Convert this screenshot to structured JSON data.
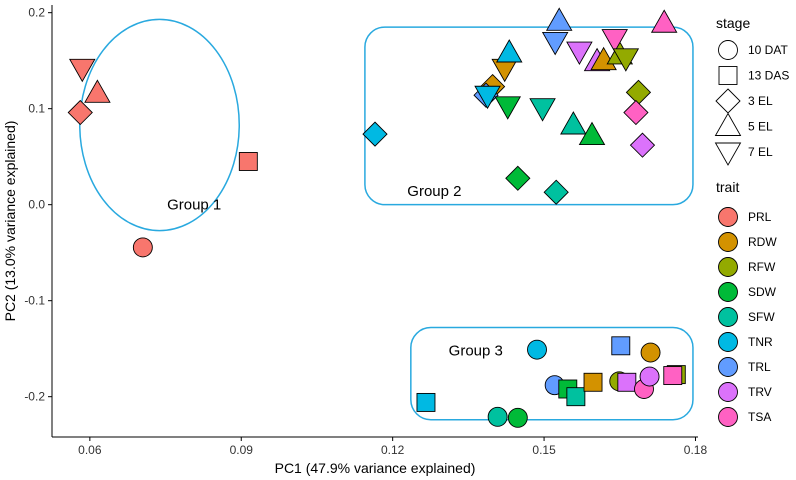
{
  "chart_data": {
    "type": "scatter",
    "xlabel": "PC1 (47.9% variance explained)",
    "ylabel": "PC2 (13.0% variance explained)",
    "xlim": [
      0.0525,
      0.1805
    ],
    "ylim": [
      -0.242,
      0.208
    ],
    "xticks": [
      0.06,
      0.09,
      0.12,
      0.15,
      0.18
    ],
    "xtick_labels": [
      "0.06",
      "0.09",
      "0.12",
      "0.15",
      "0.18"
    ],
    "yticks": [
      -0.2,
      -0.1,
      0.0,
      0.1,
      0.2
    ],
    "ytick_labels": [
      "-0.2",
      "-0.1",
      "0.0",
      "0.1",
      "0.2"
    ],
    "grid": false,
    "legend_placement": "right",
    "stage_legend": {
      "title": "stage",
      "items": [
        {
          "label": "10 DAT",
          "shape": "circle"
        },
        {
          "label": "13 DAS",
          "shape": "square"
        },
        {
          "label": "3 EL",
          "shape": "diamond"
        },
        {
          "label": "5 EL",
          "shape": "triangle-up"
        },
        {
          "label": "7 EL",
          "shape": "triangle-down"
        }
      ]
    },
    "trait_legend": {
      "title": "trait",
      "items": [
        {
          "label": "PRL",
          "color": "#F8766D"
        },
        {
          "label": "RDW",
          "color": "#D39200"
        },
        {
          "label": "RFW",
          "color": "#93AA00"
        },
        {
          "label": "SDW",
          "color": "#00BA38"
        },
        {
          "label": "SFW",
          "color": "#00C19F"
        },
        {
          "label": "TNR",
          "color": "#00B9E3"
        },
        {
          "label": "TRL",
          "color": "#619CFF"
        },
        {
          "label": "TRV",
          "color": "#DB72FB"
        },
        {
          "label": "TSA",
          "color": "#FF61C3"
        }
      ]
    },
    "groups": [
      {
        "label": "Group 1",
        "shape": "ellipse",
        "center": [
          0.0738,
          0.083
        ],
        "radii": [
          0.0158,
          0.11
        ],
        "label_at": [
          0.0753,
          0.0
        ]
      },
      {
        "label": "Group 2",
        "shape": "rounded-rect",
        "x_range": [
          0.1145,
          0.1795
        ],
        "y_range": [
          0.0,
          0.185
        ],
        "label_at": [
          0.1229,
          0.014
        ]
      },
      {
        "label": "Group 3",
        "shape": "rounded-rect",
        "x_range": [
          0.1236,
          0.1795
        ],
        "y_range": [
          -0.224,
          -0.128
        ],
        "label_at": [
          0.1311,
          -0.152
        ]
      }
    ],
    "points": [
      {
        "trait": "PRL",
        "stage": "10 DAT",
        "x": 0.0705,
        "y": -0.0445
      },
      {
        "trait": "PRL",
        "stage": "13 DAS",
        "x": 0.0914,
        "y": 0.045
      },
      {
        "trait": "PRL",
        "stage": "3 EL",
        "x": 0.0581,
        "y": 0.096
      },
      {
        "trait": "PRL",
        "stage": "5 EL",
        "x": 0.0615,
        "y": 0.116
      },
      {
        "trait": "PRL",
        "stage": "7 EL",
        "x": 0.0585,
        "y": 0.142
      },
      {
        "trait": "TNR",
        "stage": "3 EL",
        "x": 0.1165,
        "y": 0.0735
      },
      {
        "trait": "RDW",
        "stage": "3 EL",
        "x": 0.1398,
        "y": 0.123
      },
      {
        "trait": "TRL",
        "stage": "3 EL",
        "x": 0.1385,
        "y": 0.114
      },
      {
        "trait": "TNR",
        "stage": "7 EL",
        "x": 0.1388,
        "y": 0.114
      },
      {
        "trait": "RDW",
        "stage": "7 EL",
        "x": 0.1422,
        "y": 0.142
      },
      {
        "trait": "TNR",
        "stage": "5 EL",
        "x": 0.1431,
        "y": 0.158
      },
      {
        "trait": "SDW",
        "stage": "7 EL",
        "x": 0.1428,
        "y": 0.103
      },
      {
        "trait": "SFW",
        "stage": "7 EL",
        "x": 0.1497,
        "y": 0.101
      },
      {
        "trait": "TRL",
        "stage": "5 EL",
        "x": 0.153,
        "y": 0.191
      },
      {
        "trait": "TRL",
        "stage": "7 EL",
        "x": 0.1522,
        "y": 0.17
      },
      {
        "trait": "TRV",
        "stage": "7 EL",
        "x": 0.157,
        "y": 0.16
      },
      {
        "trait": "TRV",
        "stage": "5 EL",
        "x": 0.1605,
        "y": 0.149
      },
      {
        "trait": "RDW",
        "stage": "5 EL",
        "x": 0.1618,
        "y": 0.15
      },
      {
        "trait": "RFW",
        "stage": "5 EL",
        "x": 0.165,
        "y": 0.156
      },
      {
        "trait": "TSA",
        "stage": "7 EL",
        "x": 0.164,
        "y": 0.173
      },
      {
        "trait": "RFW",
        "stage": "7 EL",
        "x": 0.1662,
        "y": 0.153
      },
      {
        "trait": "TSA",
        "stage": "5 EL",
        "x": 0.1738,
        "y": 0.189
      },
      {
        "trait": "RFW",
        "stage": "3 EL",
        "x": 0.1687,
        "y": 0.117
      },
      {
        "trait": "TSA",
        "stage": "3 EL",
        "x": 0.1682,
        "y": 0.096
      },
      {
        "trait": "TRV",
        "stage": "3 EL",
        "x": 0.1695,
        "y": 0.062
      },
      {
        "trait": "SFW",
        "stage": "5 EL",
        "x": 0.1558,
        "y": 0.083
      },
      {
        "trait": "SDW",
        "stage": "5 EL",
        "x": 0.1595,
        "y": 0.072
      },
      {
        "trait": "SDW",
        "stage": "3 EL",
        "x": 0.1448,
        "y": 0.0275
      },
      {
        "trait": "SFW",
        "stage": "3 EL",
        "x": 0.1524,
        "y": 0.013
      },
      {
        "trait": "TNR",
        "stage": "10 DAT",
        "x": 0.1486,
        "y": -0.151
      },
      {
        "trait": "TNR",
        "stage": "13 DAS",
        "x": 0.1266,
        "y": -0.206
      },
      {
        "trait": "SFW",
        "stage": "10 DAT",
        "x": 0.1408,
        "y": -0.221
      },
      {
        "trait": "SDW",
        "stage": "10 DAT",
        "x": 0.1448,
        "y": -0.222
      },
      {
        "trait": "TRL",
        "stage": "10 DAT",
        "x": 0.1521,
        "y": -0.188
      },
      {
        "trait": "SDW",
        "stage": "13 DAS",
        "x": 0.1547,
        "y": -0.192
      },
      {
        "trait": "SFW",
        "stage": "13 DAS",
        "x": 0.1563,
        "y": -0.2
      },
      {
        "trait": "RDW",
        "stage": "13 DAS",
        "x": 0.1597,
        "y": -0.185
      },
      {
        "trait": "TRL",
        "stage": "13 DAS",
        "x": 0.1652,
        "y": -0.147
      },
      {
        "trait": "RFW",
        "stage": "10 DAT",
        "x": 0.1649,
        "y": -0.184
      },
      {
        "trait": "TRV",
        "stage": "13 DAS",
        "x": 0.1664,
        "y": -0.185
      },
      {
        "trait": "RDW",
        "stage": "10 DAT",
        "x": 0.1711,
        "y": -0.154
      },
      {
        "trait": "TSA",
        "stage": "10 DAT",
        "x": 0.1698,
        "y": -0.192
      },
      {
        "trait": "TRV",
        "stage": "10 DAT",
        "x": 0.1709,
        "y": -0.179
      },
      {
        "trait": "RFW",
        "stage": "13 DAS",
        "x": 0.1762,
        "y": -0.177
      },
      {
        "trait": "TSA",
        "stage": "13 DAS",
        "x": 0.1755,
        "y": -0.178
      }
    ]
  }
}
